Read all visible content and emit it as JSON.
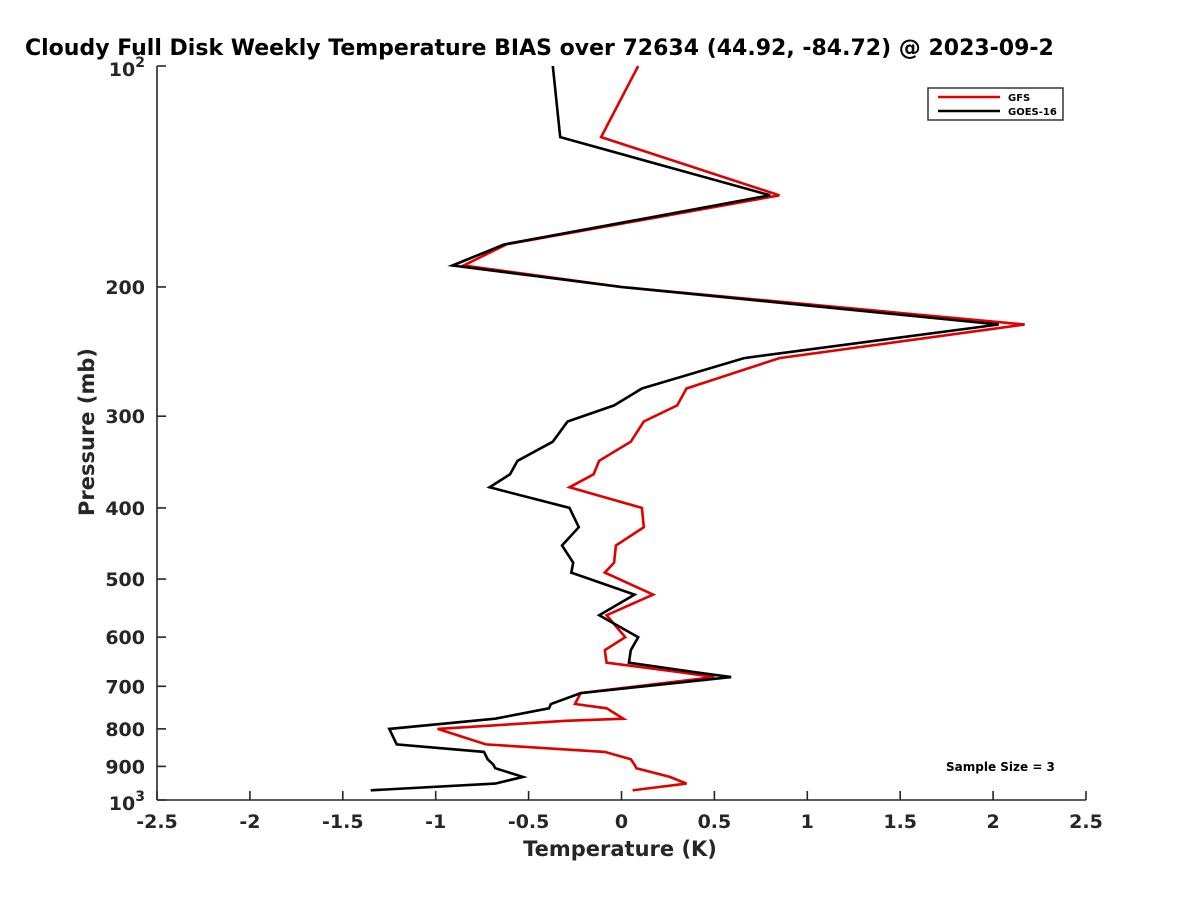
{
  "chart_data": {
    "type": "line",
    "title": "Cloudy Full Disk Weekly Temperature BIAS over 72634 (44.92, -84.72) @ 2023-09-2",
    "xlabel": "Temperature (K)",
    "ylabel": "Pressure (mb)",
    "xlim": [
      -2.5,
      2.5
    ],
    "ylim": [
      100,
      1000
    ],
    "y_scale": "log",
    "y_reversed": true,
    "grid": false,
    "legend_position": "top-right",
    "x_ticks": [
      "-2.5",
      "-2",
      "-1.5",
      "-1",
      "-0.5",
      "0",
      "0.5",
      "1",
      "1.5",
      "2",
      "2.5"
    ],
    "y_ticks": [
      "200",
      "300",
      "400",
      "500",
      "600",
      "700",
      "800",
      "900"
    ],
    "y_tick_top": {
      "base": "10",
      "exp": "2"
    },
    "y_tick_bottom": {
      "base": "10",
      "exp": "3"
    },
    "annotation": "Sample Size = 3",
    "series": [
      {
        "name": "GFS",
        "color": "#e00000",
        "points": [
          [
            0.09,
            100
          ],
          [
            -0.11,
            125
          ],
          [
            0.85,
            150
          ],
          [
            -0.62,
            175
          ],
          [
            -0.85,
            187
          ],
          [
            0.0,
            200
          ],
          [
            2.17,
            225
          ],
          [
            0.85,
            250
          ],
          [
            0.35,
            275
          ],
          [
            0.3,
            290
          ],
          [
            0.12,
            305
          ],
          [
            0.05,
            325
          ],
          [
            -0.12,
            345
          ],
          [
            -0.15,
            360
          ],
          [
            -0.28,
            375
          ],
          [
            0.11,
            400
          ],
          [
            0.12,
            425
          ],
          [
            -0.03,
            450
          ],
          [
            -0.04,
            475
          ],
          [
            -0.09,
            490
          ],
          [
            0.17,
            525
          ],
          [
            -0.08,
            560
          ],
          [
            0.02,
            600
          ],
          [
            -0.09,
            625
          ],
          [
            -0.08,
            650
          ],
          [
            0.32,
            670
          ],
          [
            0.5,
            680
          ],
          [
            -0.22,
            715
          ],
          [
            -0.25,
            740
          ],
          [
            -0.08,
            750
          ],
          [
            0.01,
            775
          ],
          [
            -0.3,
            780
          ],
          [
            -0.99,
            800
          ],
          [
            -0.73,
            840
          ],
          [
            -0.09,
            860
          ],
          [
            0.05,
            880
          ],
          [
            0.07,
            895
          ],
          [
            0.08,
            905
          ],
          [
            0.26,
            930
          ],
          [
            0.35,
            950
          ],
          [
            0.06,
            970
          ]
        ]
      },
      {
        "name": "GOES-16",
        "color": "#000000",
        "points": [
          [
            -0.37,
            100
          ],
          [
            -0.33,
            125
          ],
          [
            0.8,
            150
          ],
          [
            -0.63,
            175
          ],
          [
            -0.91,
            187
          ],
          [
            0.0,
            200
          ],
          [
            2.03,
            225
          ],
          [
            0.66,
            250
          ],
          [
            0.11,
            275
          ],
          [
            -0.04,
            290
          ],
          [
            -0.29,
            305
          ],
          [
            -0.37,
            325
          ],
          [
            -0.56,
            345
          ],
          [
            -0.6,
            360
          ],
          [
            -0.71,
            375
          ],
          [
            -0.28,
            400
          ],
          [
            -0.23,
            425
          ],
          [
            -0.32,
            450
          ],
          [
            -0.26,
            475
          ],
          [
            -0.27,
            490
          ],
          [
            0.07,
            525
          ],
          [
            -0.12,
            560
          ],
          [
            0.09,
            600
          ],
          [
            0.05,
            625
          ],
          [
            0.04,
            650
          ],
          [
            0.4,
            670
          ],
          [
            0.59,
            680
          ],
          [
            -0.22,
            715
          ],
          [
            -0.38,
            740
          ],
          [
            -0.39,
            750
          ],
          [
            -0.68,
            775
          ],
          [
            -1.25,
            800
          ],
          [
            -1.21,
            840
          ],
          [
            -0.74,
            860
          ],
          [
            -0.72,
            880
          ],
          [
            -0.69,
            895
          ],
          [
            -0.68,
            905
          ],
          [
            -0.53,
            930
          ],
          [
            -0.68,
            950
          ],
          [
            -1.35,
            970
          ]
        ]
      }
    ]
  }
}
